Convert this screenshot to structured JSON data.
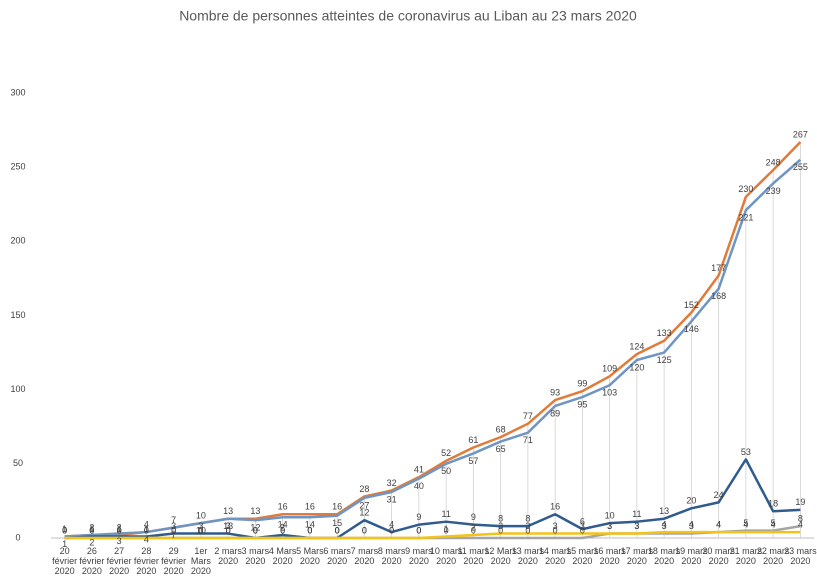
{
  "chart_data": {
    "type": "line",
    "title": "Nombre de personnes  atteintes de coronavirus  au Liban au 23 mars 2020",
    "categories": [
      "20 février 2020",
      "26 février 2020",
      "27 février 2020",
      "28 février 2020",
      "29 février 2020",
      "1er Mars 2020",
      "2 mars 2020",
      "3 mars 2020",
      "4 Mars 2020",
      "5 Mars 2020",
      "6 mars 2020",
      "7 mars 2020",
      "8 mars 2020",
      "9 mars 2020",
      "10 mars 2020",
      "11 mars 2020",
      "12 Mars 2020",
      "13 mars 2020",
      "14 mars 2020",
      "15 mars 2020",
      "16 mars 2020",
      "17 mars 2020",
      "18 mars 2020",
      "19 mars 2020",
      "20 mars 2020",
      "21 mars 2020",
      "22 mars 2020",
      "23 mars 2020"
    ],
    "series": [
      {
        "color": "#e07b39",
        "values": [
          1,
          2,
          2,
          4,
          7,
          10,
          13,
          13,
          16,
          16,
          16,
          28,
          32,
          41,
          52,
          61,
          68,
          77,
          93,
          99,
          109,
          124,
          133,
          152,
          177,
          230,
          248,
          267
        ]
      },
      {
        "color": "#6f95c5",
        "values": [
          1,
          2,
          3,
          4,
          7,
          10,
          13,
          12,
          14,
          14,
          15,
          27,
          31,
          40,
          50,
          57,
          65,
          71,
          89,
          95,
          103,
          120,
          125,
          146,
          168,
          221,
          239,
          255
        ]
      },
      {
        "color": "#2f5b8f",
        "values": [
          0,
          1,
          1,
          1,
          3,
          3,
          3,
          0,
          2,
          0,
          0,
          12,
          4,
          9,
          11,
          9,
          8,
          8,
          16,
          6,
          10,
          11,
          13,
          20,
          24,
          53,
          18,
          19
        ]
      },
      {
        "color": "#a5a5a5",
        "values": [
          0,
          0,
          0,
          0,
          0,
          0,
          0,
          0,
          0,
          0,
          0,
          0,
          0,
          0,
          0,
          0,
          0,
          0,
          0,
          0,
          3,
          3,
          3,
          3,
          4,
          5,
          5,
          8
        ]
      },
      {
        "color": "#f2c418",
        "values": [
          0,
          0,
          0,
          0,
          0,
          0,
          0,
          0,
          0,
          0,
          0,
          0,
          0,
          0,
          1,
          2,
          3,
          3,
          3,
          3,
          3,
          3,
          4,
          4,
          4,
          4,
          4,
          4
        ]
      }
    ],
    "ylim": [
      0,
      300
    ],
    "yticks": [
      0,
      50,
      100,
      150,
      200,
      250,
      300
    ],
    "grid": false
  }
}
